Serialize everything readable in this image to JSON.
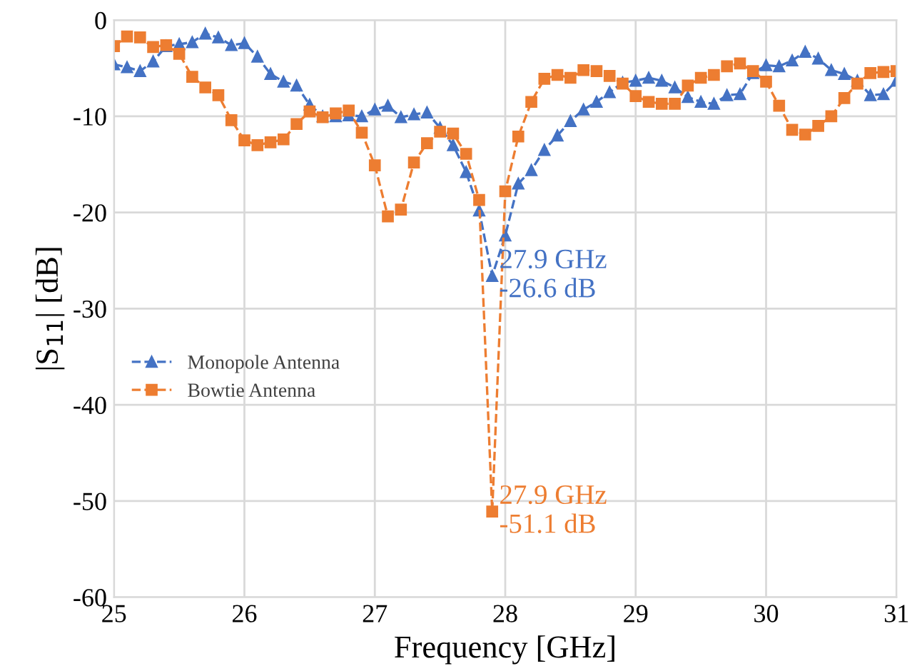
{
  "chart_data": {
    "type": "line",
    "xlabel": "Frequency [GHz]",
    "ylabel": "|S$_{11}$| [dB]",
    "x": [
      25.0,
      25.1,
      25.2,
      25.3,
      25.4,
      25.5,
      25.6,
      25.7,
      25.8,
      25.9,
      26.0,
      26.1,
      26.2,
      26.3,
      26.4,
      26.5,
      26.6,
      26.7,
      26.8,
      26.9,
      27.0,
      27.1,
      27.2,
      27.3,
      27.4,
      27.5,
      27.6,
      27.7,
      27.8,
      27.9,
      28.0,
      28.1,
      28.2,
      28.3,
      28.4,
      28.5,
      28.6,
      28.7,
      28.8,
      28.9,
      29.0,
      29.1,
      29.2,
      29.3,
      29.4,
      29.5,
      29.6,
      29.7,
      29.8,
      29.9,
      30.0,
      30.1,
      30.2,
      30.3,
      30.4,
      30.5,
      30.6,
      30.7,
      30.8,
      30.9,
      31.0
    ],
    "series": [
      {
        "name": "Monopole Antenna",
        "color": "#4472c4",
        "marker": "triangle",
        "values": [
          -4.6,
          -4.9,
          -5.3,
          -4.3,
          -2.7,
          -2.5,
          -2.3,
          -1.4,
          -1.8,
          -2.6,
          -2.4,
          -3.8,
          -5.6,
          -6.4,
          -6.8,
          -8.8,
          -10.0,
          -10.0,
          -9.9,
          -10.0,
          -9.3,
          -8.9,
          -10.1,
          -9.8,
          -9.6,
          -11.2,
          -13.0,
          -15.8,
          -19.8,
          -26.6,
          -22.4,
          -17.0,
          -15.6,
          -13.5,
          -12.0,
          -10.5,
          -9.3,
          -8.5,
          -7.5,
          -6.5,
          -6.3,
          -6.0,
          -6.3,
          -7.0,
          -8.0,
          -8.5,
          -8.7,
          -7.8,
          -7.7,
          -5.5,
          -4.7,
          -4.8,
          -4.2,
          -3.3,
          -4.0,
          -5.2,
          -5.6,
          -6.3,
          -7.8,
          -7.7,
          -6.3
        ]
      },
      {
        "name": "Bowtie Antenna",
        "color": "#ed7d31",
        "marker": "square",
        "values": [
          -2.7,
          -1.7,
          -1.8,
          -2.8,
          -2.6,
          -3.5,
          -5.9,
          -7.0,
          -7.8,
          -10.4,
          -12.5,
          -13.0,
          -12.7,
          -12.4,
          -10.8,
          -9.5,
          -10.1,
          -9.7,
          -9.4,
          -11.7,
          -15.1,
          -20.4,
          -19.7,
          -14.8,
          -12.8,
          -11.6,
          -11.8,
          -13.9,
          -18.7,
          -51.1,
          -17.8,
          -12.1,
          -8.5,
          -6.1,
          -5.7,
          -6.0,
          -5.2,
          -5.3,
          -5.8,
          -6.6,
          -7.9,
          -8.5,
          -8.7,
          -8.7,
          -6.8,
          -6.0,
          -5.7,
          -4.8,
          -4.5,
          -5.3,
          -6.4,
          -8.9,
          -11.4,
          -11.9,
          -11.0,
          -10.0,
          -8.1,
          -6.6,
          -5.5,
          -5.4,
          -5.3
        ]
      }
    ],
    "annotations": [
      {
        "text": "27.9 GHz\n-26.6 dB",
        "x": 27.9,
        "y": -26.6
      },
      {
        "text": "27.9 GHz\n-51.1 dB",
        "x": 27.9,
        "y": -51.1
      }
    ],
    "xlim": [
      25,
      31
    ],
    "xticks": [
      25,
      26,
      27,
      28,
      29,
      30,
      31
    ],
    "ylim": [
      -60,
      0
    ],
    "yticks": [
      -60,
      -50,
      -40,
      -30,
      -20,
      -10,
      0
    ],
    "grid": true,
    "legend": "left",
    "line_style": "dashed"
  }
}
